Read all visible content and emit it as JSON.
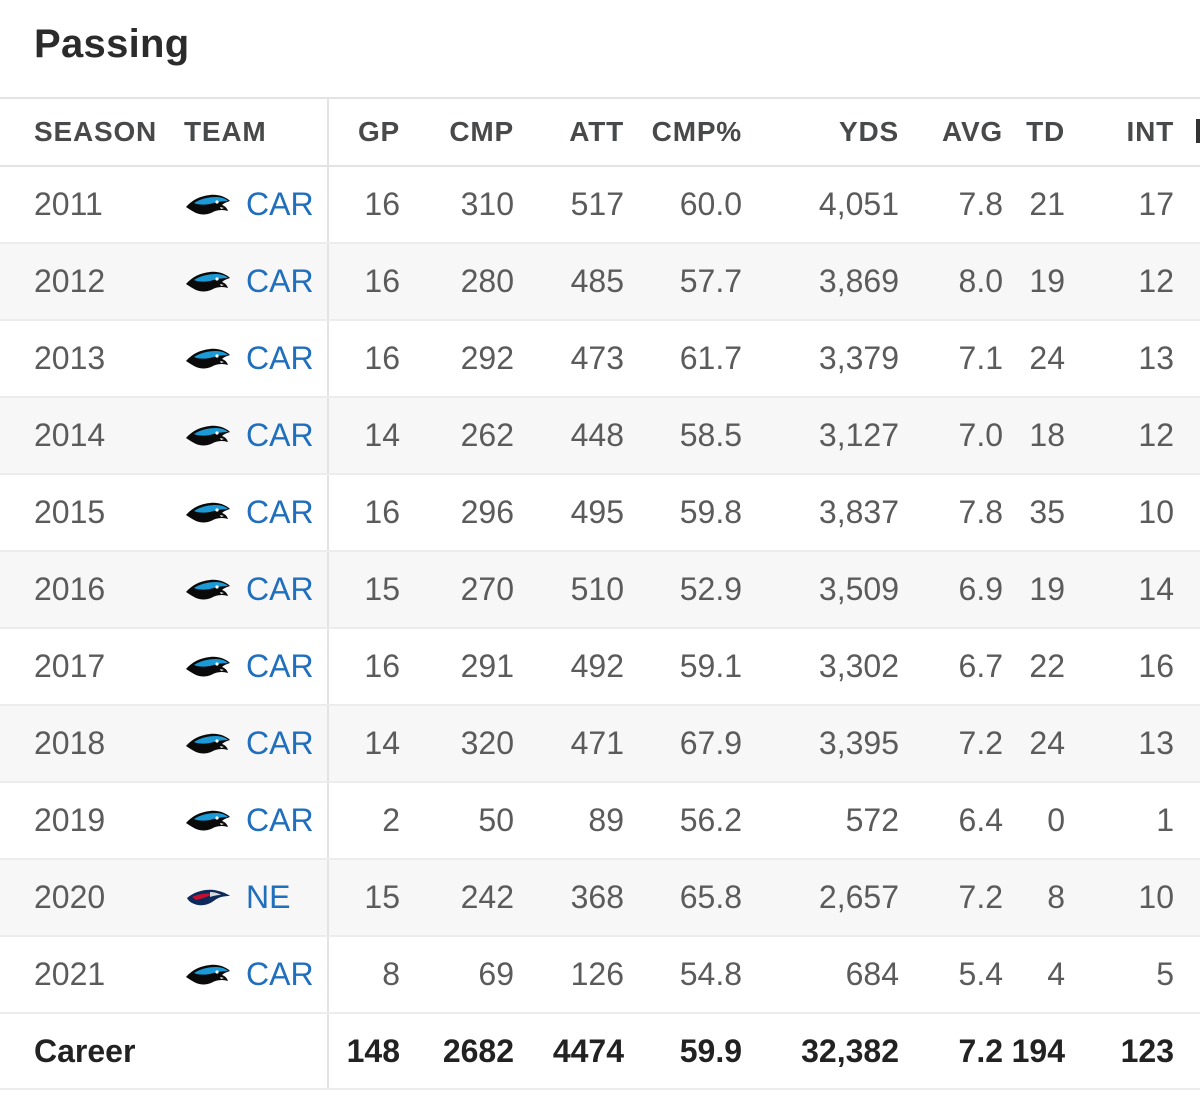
{
  "title": "Passing",
  "columns": [
    "SEASON",
    "TEAM",
    "GP",
    "CMP",
    "ATT",
    "CMP%",
    "YDS",
    "AVG",
    "TD",
    "INT"
  ],
  "rows": [
    {
      "season": "2011",
      "team": "CAR",
      "logo": "panthers-logo-icon",
      "gp": "16",
      "cmp": "310",
      "att": "517",
      "pct": "60.0",
      "yds": "4,051",
      "avg": "7.8",
      "td": "21",
      "int": "17"
    },
    {
      "season": "2012",
      "team": "CAR",
      "logo": "panthers-logo-icon",
      "gp": "16",
      "cmp": "280",
      "att": "485",
      "pct": "57.7",
      "yds": "3,869",
      "avg": "8.0",
      "td": "19",
      "int": "12"
    },
    {
      "season": "2013",
      "team": "CAR",
      "logo": "panthers-logo-icon",
      "gp": "16",
      "cmp": "292",
      "att": "473",
      "pct": "61.7",
      "yds": "3,379",
      "avg": "7.1",
      "td": "24",
      "int": "13"
    },
    {
      "season": "2014",
      "team": "CAR",
      "logo": "panthers-logo-icon",
      "gp": "14",
      "cmp": "262",
      "att": "448",
      "pct": "58.5",
      "yds": "3,127",
      "avg": "7.0",
      "td": "18",
      "int": "12"
    },
    {
      "season": "2015",
      "team": "CAR",
      "logo": "panthers-logo-icon",
      "gp": "16",
      "cmp": "296",
      "att": "495",
      "pct": "59.8",
      "yds": "3,837",
      "avg": "7.8",
      "td": "35",
      "int": "10"
    },
    {
      "season": "2016",
      "team": "CAR",
      "logo": "panthers-logo-icon",
      "gp": "15",
      "cmp": "270",
      "att": "510",
      "pct": "52.9",
      "yds": "3,509",
      "avg": "6.9",
      "td": "19",
      "int": "14"
    },
    {
      "season": "2017",
      "team": "CAR",
      "logo": "panthers-logo-icon",
      "gp": "16",
      "cmp": "291",
      "att": "492",
      "pct": "59.1",
      "yds": "3,302",
      "avg": "6.7",
      "td": "22",
      "int": "16"
    },
    {
      "season": "2018",
      "team": "CAR",
      "logo": "panthers-logo-icon",
      "gp": "14",
      "cmp": "320",
      "att": "471",
      "pct": "67.9",
      "yds": "3,395",
      "avg": "7.2",
      "td": "24",
      "int": "13"
    },
    {
      "season": "2019",
      "team": "CAR",
      "logo": "panthers-logo-icon",
      "gp": "2",
      "cmp": "50",
      "att": "89",
      "pct": "56.2",
      "yds": "572",
      "avg": "6.4",
      "td": "0",
      "int": "1"
    },
    {
      "season": "2020",
      "team": "NE",
      "logo": "patriots-logo-icon",
      "gp": "15",
      "cmp": "242",
      "att": "368",
      "pct": "65.8",
      "yds": "2,657",
      "avg": "7.2",
      "td": "8",
      "int": "10"
    },
    {
      "season": "2021",
      "team": "CAR",
      "logo": "panthers-logo-icon",
      "gp": "8",
      "cmp": "69",
      "att": "126",
      "pct": "54.8",
      "yds": "684",
      "avg": "5.4",
      "td": "4",
      "int": "5"
    }
  ],
  "career": {
    "label": "Career",
    "gp": "148",
    "cmp": "2682",
    "att": "4474",
    "pct": "59.9",
    "yds": "32,382",
    "avg": "7.2",
    "td": "194",
    "int": "123"
  },
  "colors": {
    "team_link": "#1f6fbe",
    "stripe": "#f7f7f7",
    "border": "#e3e3e3"
  }
}
